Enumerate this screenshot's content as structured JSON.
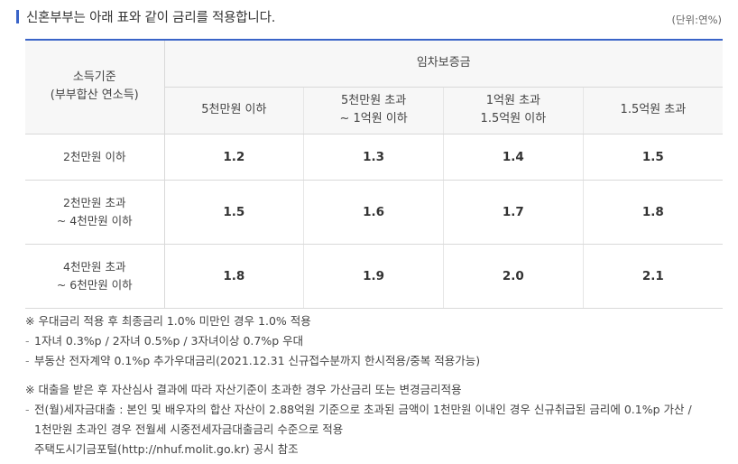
{
  "heading": "신혼부부는 아래 표와 같이 금리를 적용합니다.",
  "unit": "(단위:연%)",
  "table": {
    "rowhead_title_1": "소득기준",
    "rowhead_title_2": "(부부합산 연소득)",
    "group_header": "임차보증금",
    "columns": [
      {
        "line1": "5천만원 이하",
        "line2": ""
      },
      {
        "line1": "5천만원 초과",
        "line2": "~ 1억원 이하"
      },
      {
        "line1": "1억원 초과",
        "line2": "1.5억원 이하"
      },
      {
        "line1": "1.5억원 초과",
        "line2": ""
      }
    ],
    "rows": [
      {
        "line1": "2천만원 이하",
        "line2": "",
        "values": [
          "1.2",
          "1.3",
          "1.4",
          "1.5"
        ]
      },
      {
        "line1": "2천만원 초과",
        "line2": "~ 4천만원 이하",
        "values": [
          "1.5",
          "1.6",
          "1.7",
          "1.8"
        ]
      },
      {
        "line1": "4천만원 초과",
        "line2": "~ 6천만원 이하",
        "values": [
          "1.8",
          "1.9",
          "2.0",
          "2.1"
        ]
      }
    ]
  },
  "notes": {
    "note1": "※ 우대금리 적용 후 최종금리 1.0% 미만인 경우 1.0% 적용",
    "note1_items": [
      "1자녀 0.3%p / 2자녀 0.5%p / 3자녀이상 0.7%p 우대",
      "부동산 전자계약 0.1%p 추가우대금리(2021.12.31 신규접수분까지 한시적용/중복 적용가능)"
    ],
    "note2": "※ 대출을 받은 후 자산심사 결과에 따라 자산기준이 초과한 경우 가산금리 또는 변경금리적용",
    "note2_item_line1": "전(월)세자금대출 : 본인 및 배우자의 합산 자산이 2.88억원 기준으로 초과된 금액이 1천만원 이내인 경우 신규취급된 금리에 0.1%p 가산 /",
    "note2_item_line2": "1천만원 초과인 경우 전월세 시중전세자금대출금리 수준으로 적용",
    "note2_item_line3": "주택도시기금포털(http://nhuf.molit.go.kr) 공시 참조"
  }
}
